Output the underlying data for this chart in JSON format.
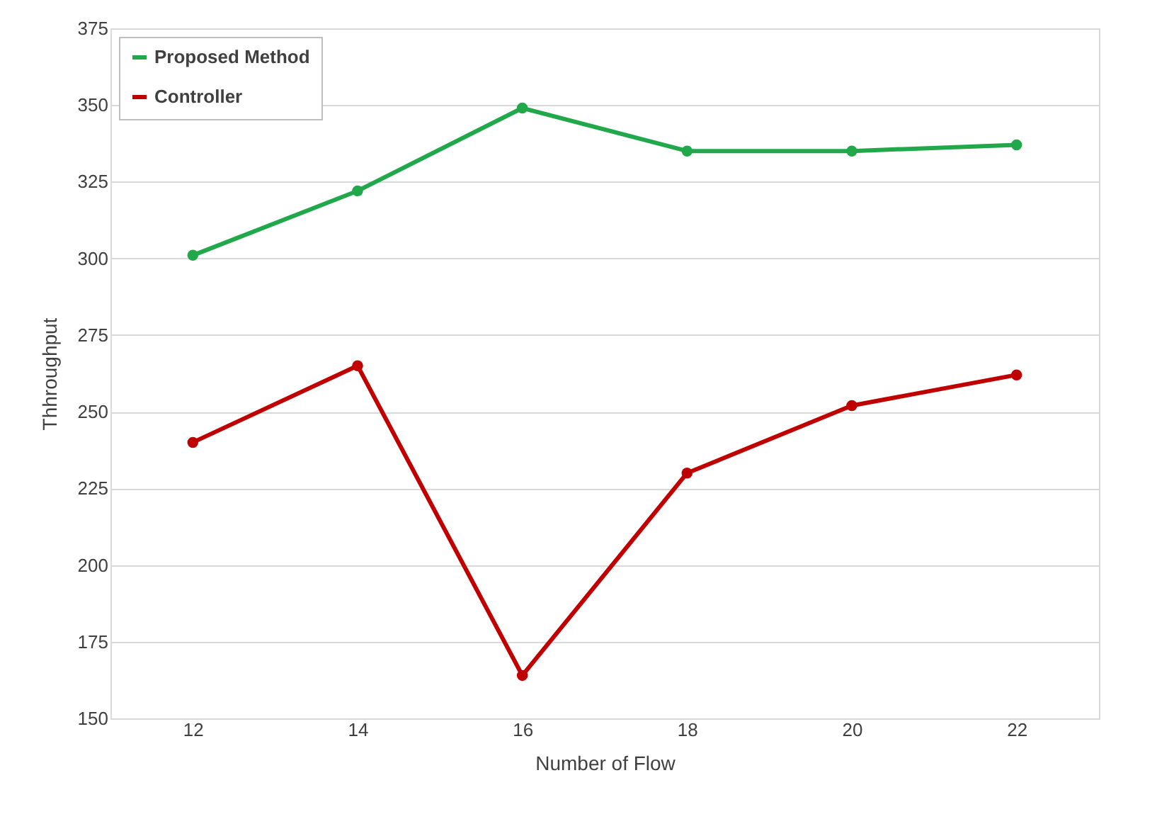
{
  "chart_data": {
    "type": "line",
    "xlabel": "Number  of Flow",
    "ylabel": "Thhroughput",
    "categories": [
      "12",
      "14",
      "16",
      "18",
      "20",
      "22"
    ],
    "series": [
      {
        "name": "Proposed Method",
        "color": "#20a84a",
        "values": [
          301,
          322,
          349,
          335,
          335,
          337
        ]
      },
      {
        "name": "Controller",
        "color": "#c00000",
        "values": [
          240,
          265,
          164,
          230,
          252,
          262
        ]
      }
    ],
    "ylim": [
      150,
      375
    ],
    "yticks": [
      150,
      175,
      200,
      225,
      250,
      275,
      300,
      325,
      350,
      375
    ],
    "grid": "y",
    "legend": "top left",
    "marker": "circle",
    "line_style": "solid"
  }
}
